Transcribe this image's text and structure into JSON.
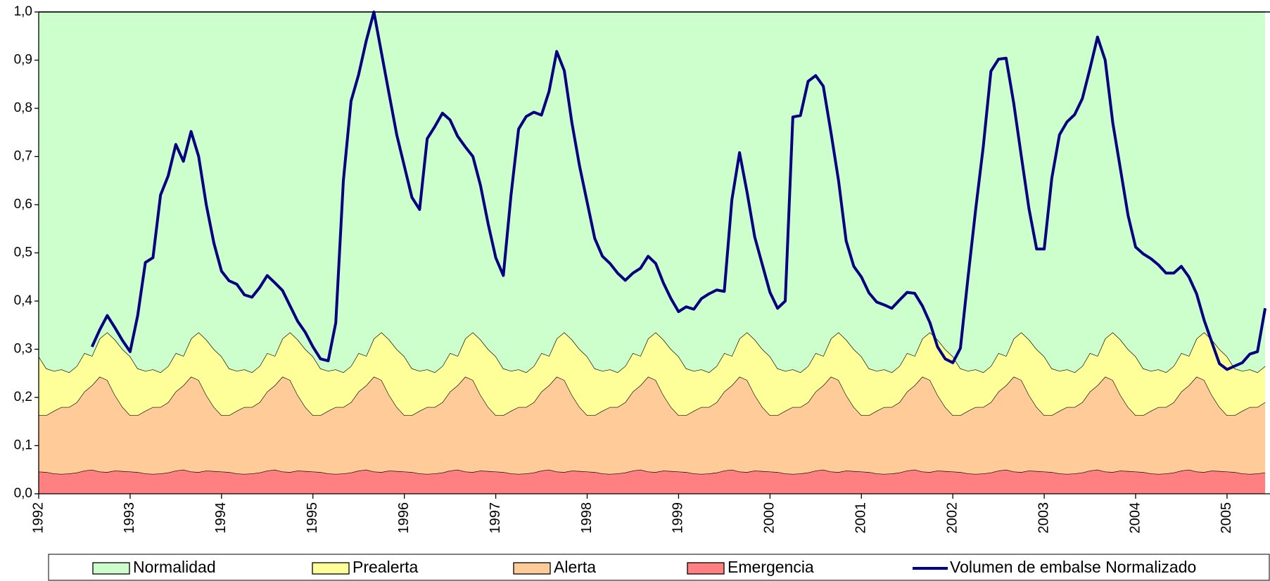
{
  "chart_data": {
    "type": "area",
    "xlim": [
      1992,
      2005.47
    ],
    "xticks": [
      1992,
      1993,
      1994,
      1995,
      1996,
      1997,
      1998,
      1999,
      2000,
      2001,
      2002,
      2003,
      2004,
      2005
    ],
    "ylim": [
      0,
      1
    ],
    "yticks": [
      {
        "value": 0,
        "label": "0,0"
      },
      {
        "value": 0.1,
        "label": "0,1"
      },
      {
        "value": 0.2,
        "label": "0,2"
      },
      {
        "value": 0.3,
        "label": "0,3"
      },
      {
        "value": 0.4,
        "label": "0,4"
      },
      {
        "value": 0.5,
        "label": "0,5"
      },
      {
        "value": 0.6,
        "label": "0,6"
      },
      {
        "value": 0.7,
        "label": "0,7"
      },
      {
        "value": 0.8,
        "label": "0,8"
      },
      {
        "value": 0.9,
        "label": "0,9"
      },
      {
        "value": 1,
        "label": "1,0"
      }
    ],
    "stacked": true,
    "x": [
      1992,
      1992.083,
      1992.167,
      1992.25,
      1992.333,
      1992.417,
      1992.5,
      1992.583,
      1992.667,
      1992.75,
      1992.833,
      1992.917,
      1993,
      1993.083,
      1993.167,
      1993.25,
      1993.333,
      1993.417,
      1993.5,
      1993.583,
      1993.667,
      1993.75,
      1993.833,
      1993.917,
      1994,
      1994.083,
      1994.167,
      1994.25,
      1994.333,
      1994.417,
      1994.5,
      1994.583,
      1994.667,
      1994.75,
      1994.833,
      1994.917,
      1995,
      1995.083,
      1995.167,
      1995.25,
      1995.333,
      1995.417,
      1995.5,
      1995.583,
      1995.667,
      1995.75,
      1995.833,
      1995.917,
      1996,
      1996.083,
      1996.167,
      1996.25,
      1996.333,
      1996.417,
      1996.5,
      1996.583,
      1996.667,
      1996.75,
      1996.833,
      1996.917,
      1997,
      1997.083,
      1997.167,
      1997.25,
      1997.333,
      1997.417,
      1997.5,
      1997.583,
      1997.667,
      1997.75,
      1997.833,
      1997.917,
      1998,
      1998.083,
      1998.167,
      1998.25,
      1998.333,
      1998.417,
      1998.5,
      1998.583,
      1998.667,
      1998.75,
      1998.833,
      1998.917,
      1999,
      1999.083,
      1999.167,
      1999.25,
      1999.333,
      1999.417,
      1999.5,
      1999.583,
      1999.667,
      1999.75,
      1999.833,
      1999.917,
      2000,
      2000.083,
      2000.167,
      2000.25,
      2000.333,
      2000.417,
      2000.5,
      2000.583,
      2000.667,
      2000.75,
      2000.833,
      2000.917,
      2001,
      2001.083,
      2001.167,
      2001.25,
      2001.333,
      2001.417,
      2001.5,
      2001.583,
      2001.667,
      2001.75,
      2001.833,
      2001.917,
      2002,
      2002.083,
      2002.167,
      2002.25,
      2002.333,
      2002.417,
      2002.5,
      2002.583,
      2002.667,
      2002.75,
      2002.833,
      2002.917,
      2003,
      2003.083,
      2003.167,
      2003.25,
      2003.333,
      2003.417,
      2003.5,
      2003.583,
      2003.667,
      2003.75,
      2003.833,
      2003.917,
      2004,
      2004.083,
      2004.167,
      2004.25,
      2004.333,
      2004.417,
      2004.5,
      2004.583,
      2004.667,
      2004.75,
      2004.833,
      2004.917,
      2005,
      2005.083,
      2005.167,
      2005.25,
      2005.333,
      2005.417
    ],
    "series": [
      {
        "name": "Normalidad",
        "color": "#ccffcc",
        "stack": true,
        "values": [
          0.715,
          0.74,
          0.745,
          0.742,
          0.748,
          0.735,
          0.708,
          0.714,
          0.678,
          0.665,
          0.68,
          0.7,
          0.715,
          0.74,
          0.745,
          0.742,
          0.748,
          0.735,
          0.708,
          0.714,
          0.678,
          0.665,
          0.68,
          0.7,
          0.715,
          0.74,
          0.745,
          0.742,
          0.748,
          0.735,
          0.708,
          0.714,
          0.678,
          0.665,
          0.68,
          0.7,
          0.715,
          0.74,
          0.745,
          0.742,
          0.748,
          0.735,
          0.708,
          0.714,
          0.678,
          0.665,
          0.68,
          0.7,
          0.715,
          0.74,
          0.745,
          0.742,
          0.748,
          0.735,
          0.708,
          0.714,
          0.678,
          0.665,
          0.68,
          0.7,
          0.715,
          0.74,
          0.745,
          0.742,
          0.748,
          0.735,
          0.708,
          0.714,
          0.678,
          0.665,
          0.68,
          0.7,
          0.715,
          0.74,
          0.745,
          0.742,
          0.748,
          0.735,
          0.708,
          0.714,
          0.678,
          0.665,
          0.68,
          0.7,
          0.715,
          0.74,
          0.745,
          0.742,
          0.748,
          0.735,
          0.708,
          0.714,
          0.678,
          0.665,
          0.68,
          0.7,
          0.715,
          0.74,
          0.745,
          0.742,
          0.748,
          0.735,
          0.708,
          0.714,
          0.678,
          0.665,
          0.68,
          0.7,
          0.715,
          0.74,
          0.745,
          0.742,
          0.748,
          0.735,
          0.708,
          0.714,
          0.678,
          0.665,
          0.68,
          0.7,
          0.715,
          0.74,
          0.745,
          0.742,
          0.748,
          0.735,
          0.708,
          0.714,
          0.678,
          0.665,
          0.68,
          0.7,
          0.715,
          0.74,
          0.745,
          0.742,
          0.748,
          0.735,
          0.708,
          0.714,
          0.678,
          0.665,
          0.68,
          0.7,
          0.715,
          0.74,
          0.745,
          0.742,
          0.748,
          0.735,
          0.708,
          0.714,
          0.678,
          0.665,
          0.68,
          0.7,
          0.715,
          0.74,
          0.745,
          0.742,
          0.748,
          0.735
        ]
      },
      {
        "name": "Prealerta",
        "color": "#ffff99",
        "stack": true,
        "values": [
          0.122,
          0.097,
          0.083,
          0.078,
          0.072,
          0.075,
          0.08,
          0.061,
          0.079,
          0.099,
          0.115,
          0.12,
          0.122,
          0.097,
          0.083,
          0.078,
          0.072,
          0.075,
          0.08,
          0.061,
          0.079,
          0.099,
          0.115,
          0.12,
          0.122,
          0.097,
          0.083,
          0.078,
          0.072,
          0.075,
          0.08,
          0.061,
          0.079,
          0.099,
          0.115,
          0.12,
          0.122,
          0.097,
          0.083,
          0.078,
          0.072,
          0.075,
          0.08,
          0.061,
          0.079,
          0.099,
          0.115,
          0.12,
          0.122,
          0.097,
          0.083,
          0.078,
          0.072,
          0.075,
          0.08,
          0.061,
          0.079,
          0.099,
          0.115,
          0.12,
          0.122,
          0.097,
          0.083,
          0.078,
          0.072,
          0.075,
          0.08,
          0.061,
          0.079,
          0.099,
          0.115,
          0.12,
          0.122,
          0.097,
          0.083,
          0.078,
          0.072,
          0.075,
          0.08,
          0.061,
          0.079,
          0.099,
          0.115,
          0.12,
          0.122,
          0.097,
          0.083,
          0.078,
          0.072,
          0.075,
          0.08,
          0.061,
          0.079,
          0.099,
          0.115,
          0.12,
          0.122,
          0.097,
          0.083,
          0.078,
          0.072,
          0.075,
          0.08,
          0.061,
          0.079,
          0.099,
          0.115,
          0.12,
          0.122,
          0.097,
          0.083,
          0.078,
          0.072,
          0.075,
          0.08,
          0.061,
          0.079,
          0.099,
          0.115,
          0.12,
          0.122,
          0.097,
          0.083,
          0.078,
          0.072,
          0.075,
          0.08,
          0.061,
          0.079,
          0.099,
          0.115,
          0.12,
          0.122,
          0.097,
          0.083,
          0.078,
          0.072,
          0.075,
          0.08,
          0.061,
          0.079,
          0.099,
          0.115,
          0.12,
          0.122,
          0.097,
          0.083,
          0.078,
          0.072,
          0.075,
          0.08,
          0.061,
          0.079,
          0.099,
          0.115,
          0.12,
          0.122,
          0.097,
          0.083,
          0.078,
          0.072,
          0.075
        ]
      },
      {
        "name": "Alerta",
        "color": "#ffcc99",
        "stack": true,
        "values": [
          0.117,
          0.118,
          0.13,
          0.139,
          0.138,
          0.146,
          0.164,
          0.175,
          0.197,
          0.191,
          0.157,
          0.133,
          0.117,
          0.118,
          0.13,
          0.139,
          0.138,
          0.146,
          0.164,
          0.175,
          0.197,
          0.191,
          0.157,
          0.133,
          0.117,
          0.118,
          0.13,
          0.139,
          0.138,
          0.146,
          0.164,
          0.175,
          0.197,
          0.191,
          0.157,
          0.133,
          0.117,
          0.118,
          0.13,
          0.139,
          0.138,
          0.146,
          0.164,
          0.175,
          0.197,
          0.191,
          0.157,
          0.133,
          0.117,
          0.118,
          0.13,
          0.139,
          0.138,
          0.146,
          0.164,
          0.175,
          0.197,
          0.191,
          0.157,
          0.133,
          0.117,
          0.118,
          0.13,
          0.139,
          0.138,
          0.146,
          0.164,
          0.175,
          0.197,
          0.191,
          0.157,
          0.133,
          0.117,
          0.118,
          0.13,
          0.139,
          0.138,
          0.146,
          0.164,
          0.175,
          0.197,
          0.191,
          0.157,
          0.133,
          0.117,
          0.118,
          0.13,
          0.139,
          0.138,
          0.146,
          0.164,
          0.175,
          0.197,
          0.191,
          0.157,
          0.133,
          0.117,
          0.118,
          0.13,
          0.139,
          0.138,
          0.146,
          0.164,
          0.175,
          0.197,
          0.191,
          0.157,
          0.133,
          0.117,
          0.118,
          0.13,
          0.139,
          0.138,
          0.146,
          0.164,
          0.175,
          0.197,
          0.191,
          0.157,
          0.133,
          0.117,
          0.118,
          0.13,
          0.139,
          0.138,
          0.146,
          0.164,
          0.175,
          0.197,
          0.191,
          0.157,
          0.133,
          0.117,
          0.118,
          0.13,
          0.139,
          0.138,
          0.146,
          0.164,
          0.175,
          0.197,
          0.191,
          0.157,
          0.133,
          0.117,
          0.118,
          0.13,
          0.139,
          0.138,
          0.146,
          0.164,
          0.175,
          0.197,
          0.191,
          0.157,
          0.133,
          0.117,
          0.118,
          0.13,
          0.139,
          0.138,
          0.146
        ]
      },
      {
        "name": "Emergencia",
        "color": "#ff8080",
        "stack": true,
        "values": [
          0.046,
          0.045,
          0.042,
          0.041,
          0.042,
          0.044,
          0.048,
          0.05,
          0.046,
          0.045,
          0.048,
          0.047,
          0.046,
          0.045,
          0.042,
          0.041,
          0.042,
          0.044,
          0.048,
          0.05,
          0.046,
          0.045,
          0.048,
          0.047,
          0.046,
          0.045,
          0.042,
          0.041,
          0.042,
          0.044,
          0.048,
          0.05,
          0.046,
          0.045,
          0.048,
          0.047,
          0.046,
          0.045,
          0.042,
          0.041,
          0.042,
          0.044,
          0.048,
          0.05,
          0.046,
          0.045,
          0.048,
          0.047,
          0.046,
          0.045,
          0.042,
          0.041,
          0.042,
          0.044,
          0.048,
          0.05,
          0.046,
          0.045,
          0.048,
          0.047,
          0.046,
          0.045,
          0.042,
          0.041,
          0.042,
          0.044,
          0.048,
          0.05,
          0.046,
          0.045,
          0.048,
          0.047,
          0.046,
          0.045,
          0.042,
          0.041,
          0.042,
          0.044,
          0.048,
          0.05,
          0.046,
          0.045,
          0.048,
          0.047,
          0.046,
          0.045,
          0.042,
          0.041,
          0.042,
          0.044,
          0.048,
          0.05,
          0.046,
          0.045,
          0.048,
          0.047,
          0.046,
          0.045,
          0.042,
          0.041,
          0.042,
          0.044,
          0.048,
          0.05,
          0.046,
          0.045,
          0.048,
          0.047,
          0.046,
          0.045,
          0.042,
          0.041,
          0.042,
          0.044,
          0.048,
          0.05,
          0.046,
          0.045,
          0.048,
          0.047,
          0.046,
          0.045,
          0.042,
          0.041,
          0.042,
          0.044,
          0.048,
          0.05,
          0.046,
          0.045,
          0.048,
          0.047,
          0.046,
          0.045,
          0.042,
          0.041,
          0.042,
          0.044,
          0.048,
          0.05,
          0.046,
          0.045,
          0.048,
          0.047,
          0.046,
          0.045,
          0.042,
          0.041,
          0.042,
          0.044,
          0.048,
          0.05,
          0.046,
          0.045,
          0.048,
          0.047,
          0.046,
          0.045,
          0.042,
          0.041,
          0.042,
          0.044
        ]
      },
      {
        "name": "Volumen de embalse Normalizado",
        "color": "#000080",
        "type": "line",
        "values": [
          null,
          null,
          null,
          null,
          null,
          null,
          null,
          0.305,
          0.34,
          0.37,
          0.345,
          0.318,
          0.295,
          0.37,
          0.48,
          0.49,
          0.62,
          0.66,
          0.725,
          0.69,
          0.752,
          0.7,
          0.6,
          0.52,
          0.462,
          0.442,
          0.435,
          0.413,
          0.408,
          0.428,
          0.453,
          0.438,
          0.422,
          0.39,
          0.358,
          0.335,
          0.305,
          0.28,
          0.276,
          0.355,
          0.65,
          0.815,
          0.87,
          0.94,
          1.0,
          0.915,
          0.83,
          0.745,
          0.68,
          0.615,
          0.59,
          0.737,
          0.762,
          0.79,
          0.776,
          0.742,
          0.72,
          0.7,
          0.64,
          0.56,
          0.49,
          0.453,
          0.62,
          0.757,
          0.783,
          0.792,
          0.786,
          0.835,
          0.918,
          0.878,
          0.77,
          0.68,
          0.605,
          0.53,
          0.493,
          0.478,
          0.458,
          0.443,
          0.458,
          0.468,
          0.493,
          0.478,
          0.438,
          0.405,
          0.378,
          0.388,
          0.383,
          0.405,
          0.415,
          0.423,
          0.42,
          0.61,
          0.708,
          0.625,
          0.533,
          0.475,
          0.418,
          0.385,
          0.4,
          0.782,
          0.785,
          0.856,
          0.868,
          0.846,
          0.75,
          0.65,
          0.525,
          0.472,
          0.45,
          0.417,
          0.398,
          0.392,
          0.385,
          0.402,
          0.418,
          0.416,
          0.39,
          0.355,
          0.305,
          0.28,
          0.272,
          0.302,
          0.45,
          0.59,
          0.72,
          0.877,
          0.902,
          0.904,
          0.81,
          0.7,
          0.592,
          0.508,
          0.508,
          0.655,
          0.745,
          0.772,
          0.787,
          0.82,
          0.882,
          0.948,
          0.9,
          0.77,
          0.675,
          0.578,
          0.512,
          0.498,
          0.488,
          0.475,
          0.458,
          0.458,
          0.472,
          0.45,
          0.415,
          0.36,
          0.315,
          0.27,
          0.258,
          0.265,
          0.272,
          0.29,
          0.295,
          0.385
        ]
      }
    ]
  }
}
